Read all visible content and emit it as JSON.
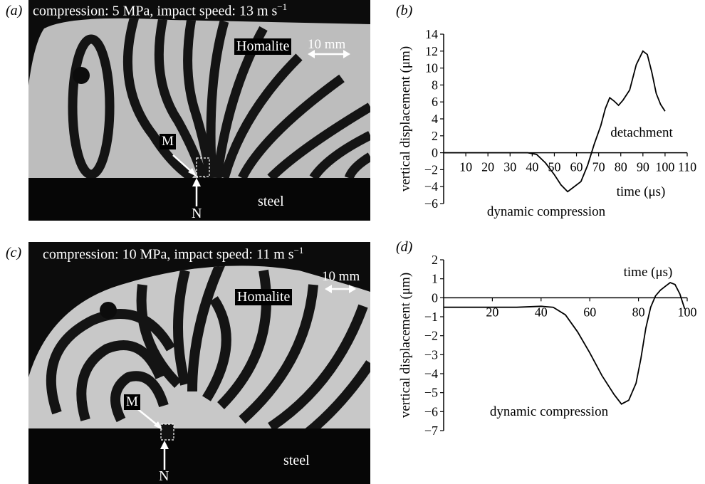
{
  "panels": {
    "a": {
      "letter": "(a)",
      "header": "compression: 5 MPa, impact speed: 13 m s",
      "header_sup": "−1",
      "material": "Homalite",
      "scale": "10 mm",
      "m": "M",
      "n": "N",
      "steel": "steel"
    },
    "c": {
      "letter": "(c)",
      "header": "compression: 10 MPa, impact speed: 11 m s",
      "header_sup": "−1",
      "material": "Homalite",
      "scale": "10 mm",
      "m": "M",
      "n": "N",
      "steel": "steel"
    },
    "b": {
      "letter": "(b)"
    },
    "d": {
      "letter": "(d)"
    }
  },
  "chart_data": [
    {
      "type": "line",
      "panel": "b",
      "xlabel": "time (μs)",
      "ylabel": "vertical displacement (μm)",
      "xlim": [
        0,
        110
      ],
      "ylim": [
        -6,
        14
      ],
      "xticks": [
        10,
        20,
        30,
        40,
        50,
        60,
        70,
        80,
        90,
        100,
        110
      ],
      "yticks": [
        -6,
        -4,
        -2,
        0,
        2,
        4,
        6,
        8,
        10,
        12,
        14
      ],
      "annotations": [
        "detachment",
        "dynamic compression"
      ],
      "series": [
        {
          "values": [
            [
              0,
              0
            ],
            [
              10,
              0
            ],
            [
              20,
              0
            ],
            [
              30,
              0
            ],
            [
              38,
              0
            ],
            [
              42,
              -0.2
            ],
            [
              46,
              -1.2
            ],
            [
              50,
              -2.6
            ],
            [
              53,
              -3.8
            ],
            [
              56,
              -4.6
            ],
            [
              58,
              -4.2
            ],
            [
              62,
              -3.4
            ],
            [
              65,
              -1.5
            ],
            [
              68,
              1.0
            ],
            [
              71,
              3.2
            ],
            [
              73,
              5.2
            ],
            [
              75,
              6.5
            ],
            [
              77,
              6.1
            ],
            [
              79,
              5.6
            ],
            [
              81,
              6.2
            ],
            [
              84,
              7.4
            ],
            [
              87,
              10.4
            ],
            [
              90,
              12.0
            ],
            [
              92,
              11.6
            ],
            [
              94,
              9.5
            ],
            [
              96,
              7.0
            ],
            [
              98,
              5.7
            ],
            [
              100,
              4.9
            ]
          ]
        }
      ]
    },
    {
      "type": "line",
      "panel": "d",
      "xlabel": "time (μs)",
      "ylabel": "vertical displacement (μm)",
      "xlim": [
        0,
        100
      ],
      "ylim": [
        -7,
        2
      ],
      "xticks": [
        20,
        40,
        60,
        80,
        100
      ],
      "yticks": [
        -7,
        -6,
        -5,
        -4,
        -3,
        -2,
        -1,
        0,
        1,
        2
      ],
      "annotations": [
        "dynamic compression"
      ],
      "series": [
        {
          "values": [
            [
              0,
              -0.5
            ],
            [
              10,
              -0.5
            ],
            [
              20,
              -0.5
            ],
            [
              30,
              -0.5
            ],
            [
              40,
              -0.45
            ],
            [
              45,
              -0.5
            ],
            [
              50,
              -0.9
            ],
            [
              55,
              -1.8
            ],
            [
              60,
              -2.9
            ],
            [
              65,
              -4.1
            ],
            [
              70,
              -5.1
            ],
            [
              73,
              -5.6
            ],
            [
              76,
              -5.4
            ],
            [
              79,
              -4.5
            ],
            [
              81,
              -3.2
            ],
            [
              83,
              -1.6
            ],
            [
              85,
              -0.5
            ],
            [
              87,
              0.1
            ],
            [
              89,
              0.4
            ],
            [
              91,
              0.6
            ],
            [
              93,
              0.8
            ],
            [
              95,
              0.7
            ],
            [
              97,
              0.2
            ],
            [
              99,
              -0.6
            ]
          ]
        }
      ]
    }
  ]
}
